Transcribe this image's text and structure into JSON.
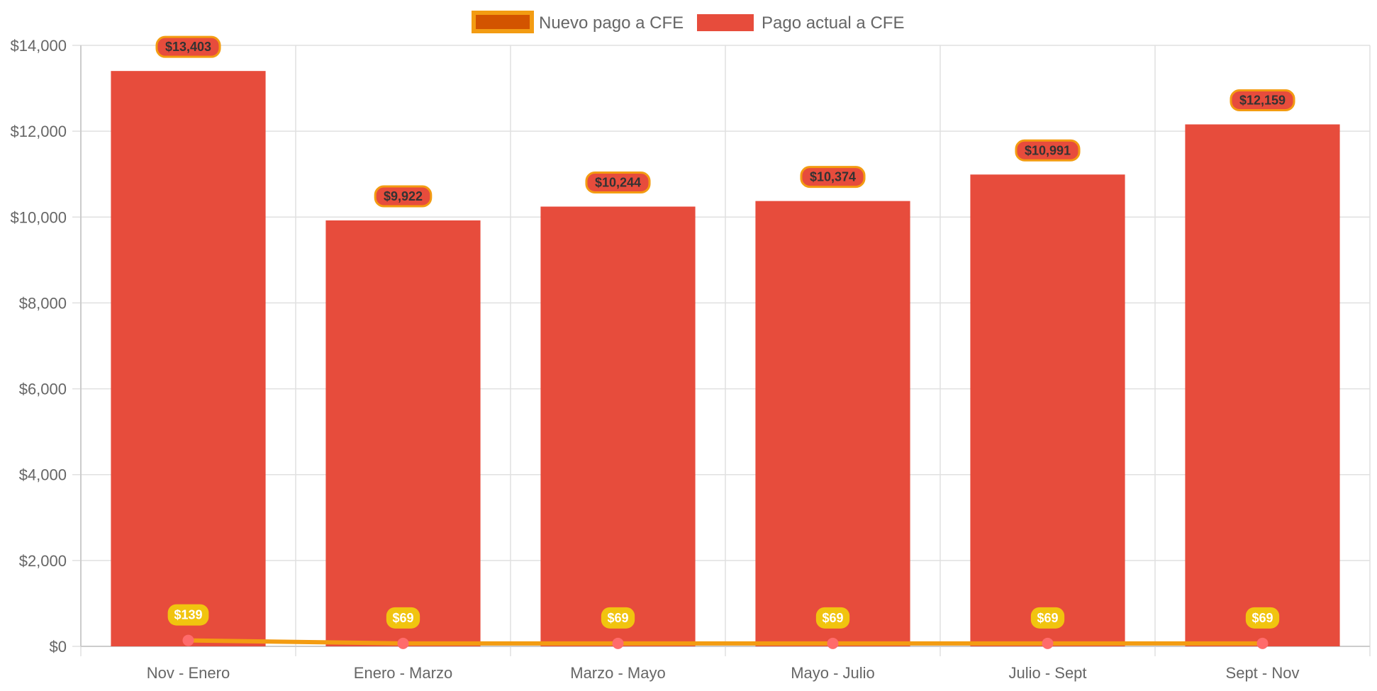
{
  "chart_data": {
    "type": "bar",
    "categories": [
      "Nov - Enero",
      "Enero - Marzo",
      "Marzo - Mayo",
      "Mayo - Julio",
      "Julio - Sept",
      "Sept - Nov"
    ],
    "series": [
      {
        "name": "Nuevo pago a CFE",
        "type": "line",
        "values": [
          139,
          69,
          69,
          69,
          69,
          69
        ],
        "labels": [
          "$139",
          "$69",
          "$69",
          "$69",
          "$69",
          "$69"
        ],
        "color": "#f39c12",
        "legend_fill": "#d35400",
        "point_color": "#ff6b6b",
        "label_bg": "#f1c40f"
      },
      {
        "name": "Pago actual a CFE",
        "type": "bar",
        "values": [
          13403,
          9922,
          10244,
          10374,
          10991,
          12159
        ],
        "labels": [
          "$13,403",
          "$9,922",
          "$10,244",
          "$10,374",
          "$10,991",
          "$12,159"
        ],
        "color": "#e74c3c",
        "label_border": "#f39c12"
      }
    ],
    "ylim": [
      0,
      14000
    ],
    "yticks": [
      0,
      2000,
      4000,
      6000,
      8000,
      10000,
      12000,
      14000
    ],
    "ytick_labels": [
      "$0",
      "$2,000",
      "$4,000",
      "$6,000",
      "$8,000",
      "$10,000",
      "$12,000",
      "$14,000"
    ],
    "grid": true,
    "legend_position": "top-center",
    "grid_color": "#e0e0e0"
  }
}
